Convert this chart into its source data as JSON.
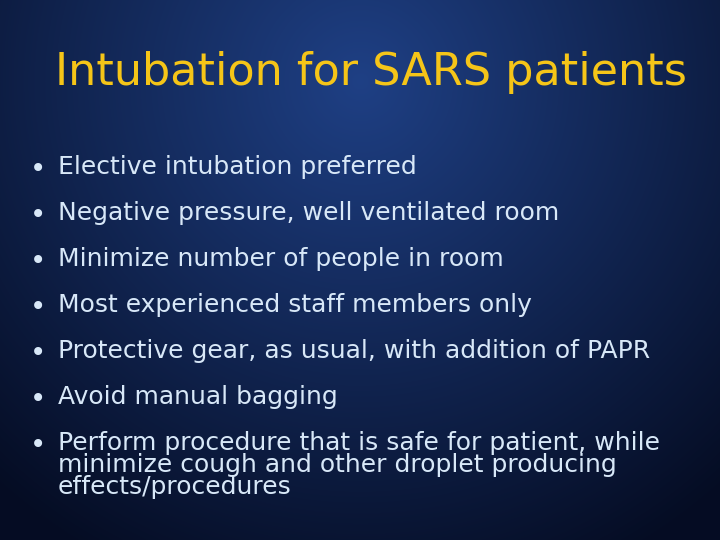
{
  "title": "Intubation for SARS patients",
  "title_color": "#F5C518",
  "title_fontsize": 32,
  "bullet_color": "#D8E8F8",
  "bullet_fontsize": 18,
  "bullets": [
    "Elective intubation preferred",
    "Negative pressure, well ventilated room",
    "Minimize number of people in room",
    "Most experienced staff members only",
    "Protective gear, as usual, with addition of PAPR",
    "Avoid manual bagging",
    "Perform procedure that is safe for patient, while\nminimize cough and other droplet producing\neffects/procedures"
  ],
  "figsize": [
    7.2,
    5.4
  ],
  "dpi": 100
}
